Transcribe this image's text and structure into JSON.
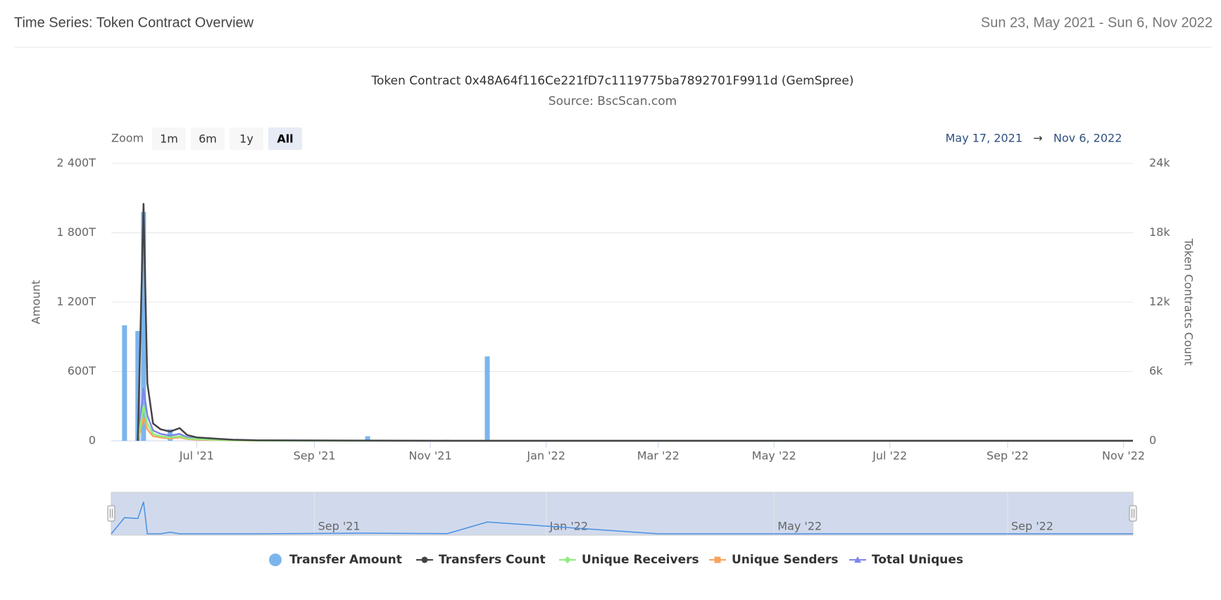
{
  "header": {
    "title": "Time Series: Token Contract Overview",
    "date_range": "Sun 23, May 2021 - Sun 6, Nov 2022"
  },
  "chart_data": {
    "type": "stock",
    "title": "Token Contract 0x48A64f116Ce221fD7c1119775ba7892701F9911d (GemSpree)",
    "subtitle": "Source: BscScan.com",
    "range_selector": {
      "label": "Zoom",
      "buttons": [
        "1m",
        "6m",
        "1y",
        "All"
      ],
      "selected": 3,
      "from": "May 17, 2021",
      "arrow": "→",
      "to": "Nov 6, 2022"
    },
    "y_label": "Amount",
    "y2_label": "Token Contracts Count",
    "x": [
      "2021-05-17",
      "2021-05-24",
      "2021-05-31",
      "2021-06-03",
      "2021-06-05",
      "2021-06-08",
      "2021-06-12",
      "2021-06-17",
      "2021-06-22",
      "2021-06-26",
      "2021-07-01",
      "2021-07-10",
      "2021-07-20",
      "2021-08-01",
      "2021-09-29",
      "2021-11-10",
      "2021-12-01",
      "2022-03-01",
      "2022-07-01",
      "2022-11-06"
    ],
    "xlim": [
      "2021-05-17",
      "2022-11-06"
    ],
    "xticks": [
      {
        "value": "2021-07-01",
        "label": "Jul '21"
      },
      {
        "value": "2021-09-01",
        "label": "Sep '21"
      },
      {
        "value": "2021-11-01",
        "label": "Nov '21"
      },
      {
        "value": "2022-01-01",
        "label": "Jan '22"
      },
      {
        "value": "2022-03-01",
        "label": "Mar '22"
      },
      {
        "value": "2022-05-01",
        "label": "May '22"
      },
      {
        "value": "2022-07-01",
        "label": "Jul '22"
      },
      {
        "value": "2022-09-01",
        "label": "Sep '22"
      },
      {
        "value": "2022-11-01",
        "label": "Nov '22"
      }
    ],
    "navigator_ticks": [
      {
        "value": "2021-09-01",
        "label": "Sep '21"
      },
      {
        "value": "2022-01-01",
        "label": "Jan '22"
      },
      {
        "value": "2022-05-01",
        "label": "May '22"
      },
      {
        "value": "2022-09-01",
        "label": "Sep '22"
      }
    ],
    "ylim": [
      0,
      2400
    ],
    "yticks": [
      0,
      {
        "value": 600,
        "label": "600T"
      },
      {
        "value": 1200,
        "label": "1 200T"
      },
      {
        "value": 1800,
        "label": "1 800T"
      },
      {
        "value": 2400,
        "label": "2 400T"
      }
    ],
    "y2lim": [
      0,
      24000
    ],
    "y2ticks": [
      0,
      {
        "value": 6000,
        "label": "6k"
      },
      {
        "value": 12000,
        "label": "12k"
      },
      {
        "value": 18000,
        "label": "18k"
      },
      {
        "value": 24000,
        "label": "24k"
      }
    ],
    "grid": true,
    "series": [
      {
        "name": "Transfer Amount",
        "type": "column",
        "marker": "circle",
        "color": "#7cb5ec",
        "values": [
          0,
          1000,
          950,
          1980,
          0,
          0,
          0,
          100,
          0,
          0,
          0,
          0,
          0,
          0,
          40,
          10,
          730,
          0,
          0,
          0
        ]
      },
      {
        "name": "Transfers Count",
        "type": "line",
        "axis": "y2",
        "marker": "circle",
        "color": "#434348",
        "values": [
          null,
          null,
          0,
          20500,
          5000,
          1500,
          1000,
          800,
          1100,
          500,
          300,
          200,
          100,
          50,
          20,
          10,
          10,
          5,
          5,
          5
        ]
      },
      {
        "name": "Unique Receivers",
        "type": "line",
        "axis": "y2",
        "marker": "diamond",
        "color": "#90ed7d",
        "values": [
          null,
          null,
          0,
          3000,
          1500,
          600,
          400,
          300,
          400,
          200,
          150,
          100,
          50,
          20,
          10,
          5,
          5,
          3,
          3,
          3
        ]
      },
      {
        "name": "Unique Senders",
        "type": "line",
        "axis": "y2",
        "marker": "square",
        "color": "#f7a35c",
        "values": [
          null,
          null,
          0,
          2000,
          1000,
          400,
          300,
          200,
          300,
          150,
          100,
          80,
          40,
          15,
          8,
          4,
          4,
          2,
          2,
          2
        ]
      },
      {
        "name": "Total Uniques",
        "type": "line",
        "axis": "y2",
        "marker": "triangle",
        "color": "#8085e9",
        "values": [
          null,
          null,
          0,
          4500,
          2200,
          900,
          600,
          450,
          600,
          300,
          220,
          160,
          80,
          30,
          15,
          8,
          8,
          4,
          4,
          4
        ]
      }
    ]
  }
}
